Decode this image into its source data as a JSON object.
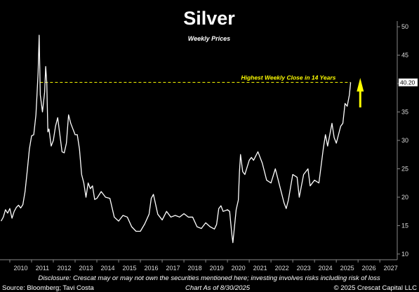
{
  "chart_data": {
    "type": "line",
    "title": "Silver",
    "subtitle": "Weekly Prices",
    "x_axis": {
      "range": [
        2009.55,
        2027.8
      ],
      "tick_labels": [
        "2010",
        "2011",
        "2012",
        "2013",
        "2014",
        "2015",
        "2016",
        "2017",
        "2018",
        "2019",
        "2020",
        "2021",
        "2022",
        "2023",
        "2024",
        "2025",
        "2026",
        "2027"
      ]
    },
    "y_axis": {
      "position": "right",
      "range": [
        9,
        51
      ],
      "tick_labels": [
        "10",
        "15",
        "20",
        "25",
        "30",
        "35",
        "40",
        "45",
        "50"
      ]
    },
    "series": [
      {
        "color": "#ffffff",
        "x": [
          2009.6,
          2009.7,
          2009.8,
          2009.9,
          2010.0,
          2010.1,
          2010.2,
          2010.3,
          2010.4,
          2010.5,
          2010.6,
          2010.7,
          2010.8,
          2010.9,
          2011.0,
          2011.1,
          2011.2,
          2011.25,
          2011.3,
          2011.35,
          2011.4,
          2011.5,
          2011.6,
          2011.65,
          2011.7,
          2011.75,
          2011.8,
          2011.9,
          2012.0,
          2012.1,
          2012.2,
          2012.3,
          2012.4,
          2012.5,
          2012.6,
          2012.7,
          2012.8,
          2012.9,
          2013.0,
          2013.1,
          2013.2,
          2013.3,
          2013.4,
          2013.5,
          2013.6,
          2013.7,
          2013.8,
          2013.9,
          2014.0,
          2014.2,
          2014.4,
          2014.6,
          2014.8,
          2015.0,
          2015.2,
          2015.4,
          2015.6,
          2015.8,
          2016.0,
          2016.2,
          2016.4,
          2016.5,
          2016.6,
          2016.8,
          2017.0,
          2017.2,
          2017.4,
          2017.6,
          2017.8,
          2018.0,
          2018.2,
          2018.4,
          2018.6,
          2018.8,
          2019.0,
          2019.2,
          2019.4,
          2019.5,
          2019.6,
          2019.7,
          2019.8,
          2020.0,
          2020.1,
          2020.2,
          2020.25,
          2020.4,
          2020.5,
          2020.55,
          2020.6,
          2020.7,
          2020.8,
          2021.0,
          2021.1,
          2021.2,
          2021.4,
          2021.6,
          2021.8,
          2022.0,
          2022.2,
          2022.4,
          2022.6,
          2022.7,
          2022.8,
          2023.0,
          2023.2,
          2023.3,
          2023.5,
          2023.7,
          2023.8,
          2024.0,
          2024.2,
          2024.4,
          2024.5,
          2024.6,
          2024.8,
          2024.9,
          2025.0,
          2025.2,
          2025.3,
          2025.4,
          2025.5,
          2025.6,
          2025.66
        ],
        "y": [
          15.8,
          16.5,
          17.8,
          17.2,
          18.0,
          16.3,
          17.5,
          18.2,
          18.6,
          18.1,
          18.7,
          21.0,
          24.6,
          28.5,
          30.8,
          31.0,
          34.5,
          38.0,
          42.0,
          48.5,
          38.0,
          35.0,
          38.5,
          43.0,
          40.0,
          31.5,
          32.0,
          29.0,
          30.0,
          32.5,
          34.0,
          31.0,
          28.0,
          27.8,
          29.5,
          34.5,
          33.0,
          32.0,
          31.0,
          31.0,
          28.5,
          24.0,
          22.5,
          20.0,
          22.5,
          21.5,
          22.0,
          19.6,
          19.8,
          21.0,
          20.0,
          19.8,
          16.5,
          15.8,
          16.8,
          16.5,
          14.8,
          14.0,
          14.0,
          15.3,
          17.0,
          19.8,
          20.5,
          17.0,
          16.0,
          17.5,
          16.5,
          16.8,
          16.5,
          17.1,
          16.5,
          16.5,
          14.8,
          14.5,
          15.5,
          14.8,
          14.4,
          15.2,
          18.0,
          18.5,
          17.5,
          17.8,
          17.5,
          13.5,
          12.0,
          17.8,
          19.5,
          24.5,
          27.5,
          24.5,
          24.0,
          26.5,
          27.0,
          26.5,
          28.0,
          26.0,
          23.0,
          22.5,
          25.0,
          22.0,
          19.0,
          18.0,
          19.5,
          24.0,
          23.5,
          20.0,
          24.0,
          25.0,
          22.0,
          23.0,
          22.5,
          28.5,
          31.0,
          29.0,
          33.0,
          30.5,
          29.5,
          32.5,
          33.0,
          36.5,
          36.0,
          38.0,
          40.2
        ]
      }
    ],
    "reference_line": {
      "y": 40.2,
      "color": "#ffff00",
      "label": "Highest Weekly Close in 14 Years"
    },
    "last_value_label": "40.20",
    "annotation_arrow": {
      "color": "#ffff00",
      "direction": "up"
    },
    "grid": false,
    "legend": "none"
  },
  "footer": {
    "disclosure": "Disclosure: Crescat may or may not own the securities mentioned here; investing involves risks including risk of loss",
    "source": "Source: Bloomberg; Tavi Costa",
    "chart_as_of": "Chart As of 8/30/2025",
    "copyright": "© 2025 Crescat Capital LLC"
  }
}
